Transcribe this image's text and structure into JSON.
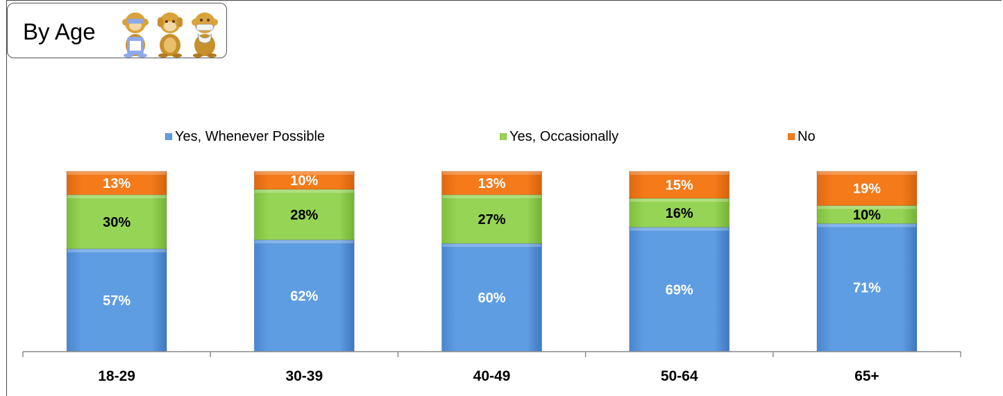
{
  "title": "By Age",
  "icons": [
    "see-no-evil-monkey-icon",
    "hear-no-evil-monkey-icon",
    "speak-no-evil-monkey-icon"
  ],
  "legend": [
    {
      "label": "Yes, Whenever Possible",
      "color": "#5b9be2"
    },
    {
      "label": "Yes, Occasionally",
      "color": "#92d050"
    },
    {
      "label": "No",
      "color": "#f07818"
    }
  ],
  "chart_data": {
    "type": "bar",
    "stacked": true,
    "categories": [
      "18-29",
      "30-39",
      "40-49",
      "50-64",
      "65+"
    ],
    "series": [
      {
        "name": "Yes, Whenever Possible",
        "values": [
          57,
          62,
          60,
          69,
          71
        ],
        "labels": [
          "57%",
          "62%",
          "60%",
          "69%",
          "71%"
        ],
        "color": "#5b9be2",
        "label_color": "#ffffff"
      },
      {
        "name": "Yes, Occasionally",
        "values": [
          30,
          28,
          27,
          16,
          10
        ],
        "labels": [
          "30%",
          "28%",
          "27%",
          "16%",
          "10%"
        ],
        "color": "#92d050",
        "label_color": "#000000"
      },
      {
        "name": "No",
        "values": [
          13,
          10,
          13,
          15,
          19
        ],
        "labels": [
          "13%",
          "10%",
          "13%",
          "15%",
          "19%"
        ],
        "color": "#f07818",
        "label_color": "#ffffff"
      }
    ],
    "ylim": [
      0,
      100
    ],
    "legend_position": "top",
    "grid": false
  }
}
